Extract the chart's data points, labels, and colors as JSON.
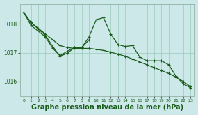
{
  "bg_color": "#cce8e8",
  "grid_color": "#99ccbb",
  "line_color": "#1a5c1a",
  "xlabel": "Graphe pression niveau de la mer (hPa)",
  "xlabel_fontsize": 7,
  "xlim": [
    -0.5,
    23.5
  ],
  "ylim": [
    1015.5,
    1018.7
  ],
  "yticks": [
    1016,
    1017,
    1018
  ],
  "xticks": [
    0,
    1,
    2,
    3,
    4,
    5,
    6,
    7,
    8,
    9,
    10,
    11,
    12,
    13,
    14,
    15,
    16,
    17,
    18,
    19,
    20,
    21,
    22,
    23
  ],
  "s1_x": [
    0,
    1,
    2,
    3,
    4,
    5,
    6,
    7,
    8,
    9,
    10,
    11,
    12,
    13,
    14,
    15,
    16,
    17,
    18,
    19,
    20,
    21,
    22,
    23
  ],
  "s1_y": [
    1018.4,
    1018.05,
    1017.85,
    1017.65,
    1017.45,
    1017.25,
    1017.18,
    1017.15,
    1017.15,
    1017.15,
    1017.12,
    1017.08,
    1017.02,
    1016.95,
    1016.88,
    1016.78,
    1016.68,
    1016.58,
    1016.48,
    1016.38,
    1016.28,
    1016.15,
    1016.0,
    1015.82
  ],
  "s2_x": [
    0,
    1,
    3,
    4,
    5,
    6,
    7,
    8,
    9,
    10,
    11,
    12,
    13,
    14,
    15,
    16,
    17,
    18,
    19,
    20,
    21,
    22,
    23
  ],
  "s2_y": [
    1018.4,
    1017.95,
    1017.55,
    1017.15,
    1016.9,
    1017.05,
    1017.18,
    1017.18,
    1017.55,
    1018.15,
    1018.22,
    1017.65,
    1017.28,
    1017.22,
    1017.25,
    1016.85,
    1016.72,
    1016.72,
    1016.72,
    1016.58,
    1016.18,
    1015.92,
    1015.78
  ],
  "s3_x": [
    0,
    1,
    3,
    4,
    5,
    6,
    7,
    8,
    9
  ],
  "s3_y": [
    1018.4,
    1018.05,
    1017.6,
    1017.22,
    1016.88,
    1016.98,
    1017.18,
    1017.18,
    1017.45
  ]
}
